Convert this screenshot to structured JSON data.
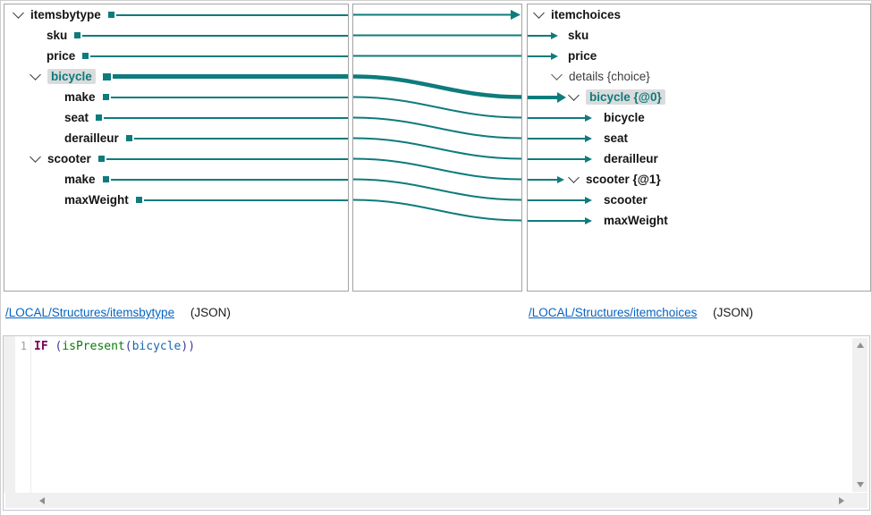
{
  "source_panel": {
    "items": [
      {
        "label": "itemsbytype",
        "level": 0,
        "chevron": true
      },
      {
        "label": "sku",
        "level": 1
      },
      {
        "label": "price",
        "level": 1
      },
      {
        "label": "bicycle",
        "level": 1,
        "chevron": true,
        "selected": true
      },
      {
        "label": "make",
        "level": 2
      },
      {
        "label": "seat",
        "level": 2
      },
      {
        "label": "derailleur",
        "level": 2
      },
      {
        "label": "scooter",
        "level": 1,
        "chevron": true
      },
      {
        "label": "make",
        "level": 2
      },
      {
        "label": "maxWeight",
        "level": 2
      }
    ]
  },
  "target_panel": {
    "items": [
      {
        "label": "itemchoices",
        "level": 0,
        "chevron": true,
        "arrow": "none"
      },
      {
        "label": "sku",
        "level": 1,
        "arrow": "thin"
      },
      {
        "label": "price",
        "level": 1,
        "arrow": "thin"
      },
      {
        "label": "details {choice}",
        "level": 1,
        "chevron": true,
        "arrow": "none",
        "muted": true
      },
      {
        "label": "bicycle {@0}",
        "level": 2,
        "chevron": true,
        "arrow": "thick",
        "selected": true
      },
      {
        "label": "bicycle",
        "level": 3,
        "arrow": "thin"
      },
      {
        "label": "seat",
        "level": 3,
        "arrow": "thin"
      },
      {
        "label": "derailleur",
        "level": 3,
        "arrow": "thin"
      },
      {
        "label": "scooter {@1}",
        "level": 2,
        "chevron": true,
        "arrow": "thin"
      },
      {
        "label": "scooter",
        "level": 3,
        "arrow": "thin"
      },
      {
        "label": "maxWeight",
        "level": 3,
        "arrow": "thin"
      }
    ]
  },
  "mappings": [
    {
      "from": 0,
      "to": 0,
      "style": "arrow"
    },
    {
      "from": 1,
      "to": 1
    },
    {
      "from": 2,
      "to": 2
    },
    {
      "from": 3,
      "to": 4,
      "style": "thick"
    },
    {
      "from": 4,
      "to": 5
    },
    {
      "from": 5,
      "to": 6
    },
    {
      "from": 6,
      "to": 7
    },
    {
      "from": 7,
      "to": 8
    },
    {
      "from": 8,
      "to": 9
    },
    {
      "from": 9,
      "to": 10
    }
  ],
  "source_link": {
    "path": "/LOCAL/Structures/itemsbytype",
    "format": "(JSON)"
  },
  "target_link": {
    "path": "/LOCAL/Structures/itemchoices",
    "format": "(JSON)"
  },
  "editor": {
    "line_number": "1",
    "code_text": "IF (isPresent(bicycle))",
    "tokens": [
      {
        "text": "IF",
        "type": "keyword"
      },
      {
        "text": " (",
        "type": "paren"
      },
      {
        "text": "isPresent",
        "type": "function"
      },
      {
        "text": "(",
        "type": "paren"
      },
      {
        "text": "bicycle",
        "type": "variable"
      },
      {
        "text": "))",
        "type": "paren"
      }
    ]
  },
  "colors": {
    "accent_teal": "#0E7B7D",
    "link_blue": "#0563C1",
    "selected_bg": "#DBDBDB",
    "keyword": "#7F0055",
    "function_green": "#0A7A0A",
    "variable_blue": "#1A66B0"
  }
}
